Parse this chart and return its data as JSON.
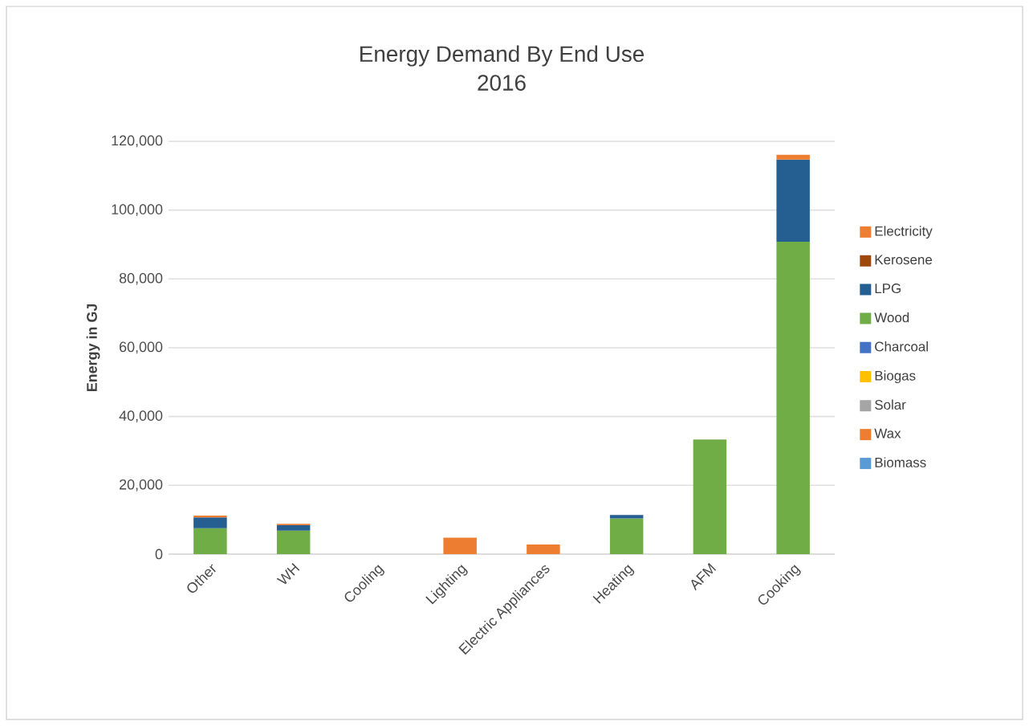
{
  "chart_data": {
    "type": "bar",
    "stacked": true,
    "title": "Energy Demand By End Use",
    "subtitle": "2016",
    "ylabel": "Energy in GJ",
    "categories": [
      "Other",
      "WH",
      "Cooling",
      "Lighting",
      "Electric Appliances",
      "Heating",
      "AFM",
      "Cooking"
    ],
    "series": [
      {
        "name": "Biomass",
        "color": "#5b9bd5",
        "values": [
          null,
          null,
          null,
          null,
          null,
          null,
          null,
          null
        ]
      },
      {
        "name": "Wax",
        "color": "#ed7d31",
        "values": [
          null,
          null,
          null,
          null,
          null,
          null,
          null,
          null
        ]
      },
      {
        "name": "Solar",
        "color": "#a5a5a5",
        "values": [
          null,
          null,
          null,
          null,
          null,
          null,
          null,
          null
        ]
      },
      {
        "name": "Biogas",
        "color": "#ffc000",
        "values": [
          null,
          null,
          null,
          null,
          null,
          null,
          null,
          null
        ]
      },
      {
        "name": "Charcoal",
        "color": "#4472c4",
        "values": [
          null,
          null,
          null,
          null,
          null,
          null,
          null,
          null
        ]
      },
      {
        "name": "Wood",
        "color": "#70ad47",
        "values": [
          7500,
          6800,
          null,
          null,
          null,
          10400,
          33300,
          90800
        ]
      },
      {
        "name": "LPG",
        "color": "#255e91",
        "values": [
          3200,
          1600,
          null,
          null,
          null,
          1000,
          null,
          23900
        ]
      },
      {
        "name": "Kerosene",
        "color": "#9e480e",
        "values": [
          null,
          null,
          null,
          null,
          null,
          null,
          null,
          null
        ]
      },
      {
        "name": "Electricity",
        "color": "#ed7d31",
        "values": [
          500,
          400,
          null,
          4800,
          2800,
          null,
          null,
          1400
        ]
      }
    ],
    "ylim": [
      0,
      120000
    ],
    "yticks": [
      0,
      {
        "value": 20000,
        "label": "20,000"
      },
      {
        "value": 40000,
        "label": "40,000"
      },
      {
        "value": 60000,
        "label": "60,000"
      },
      {
        "value": 80000,
        "label": "80,000"
      },
      {
        "value": 100000,
        "label": "100,000"
      },
      {
        "value": 120000,
        "label": "120,000"
      }
    ],
    "grid": "y",
    "legend": "right"
  }
}
